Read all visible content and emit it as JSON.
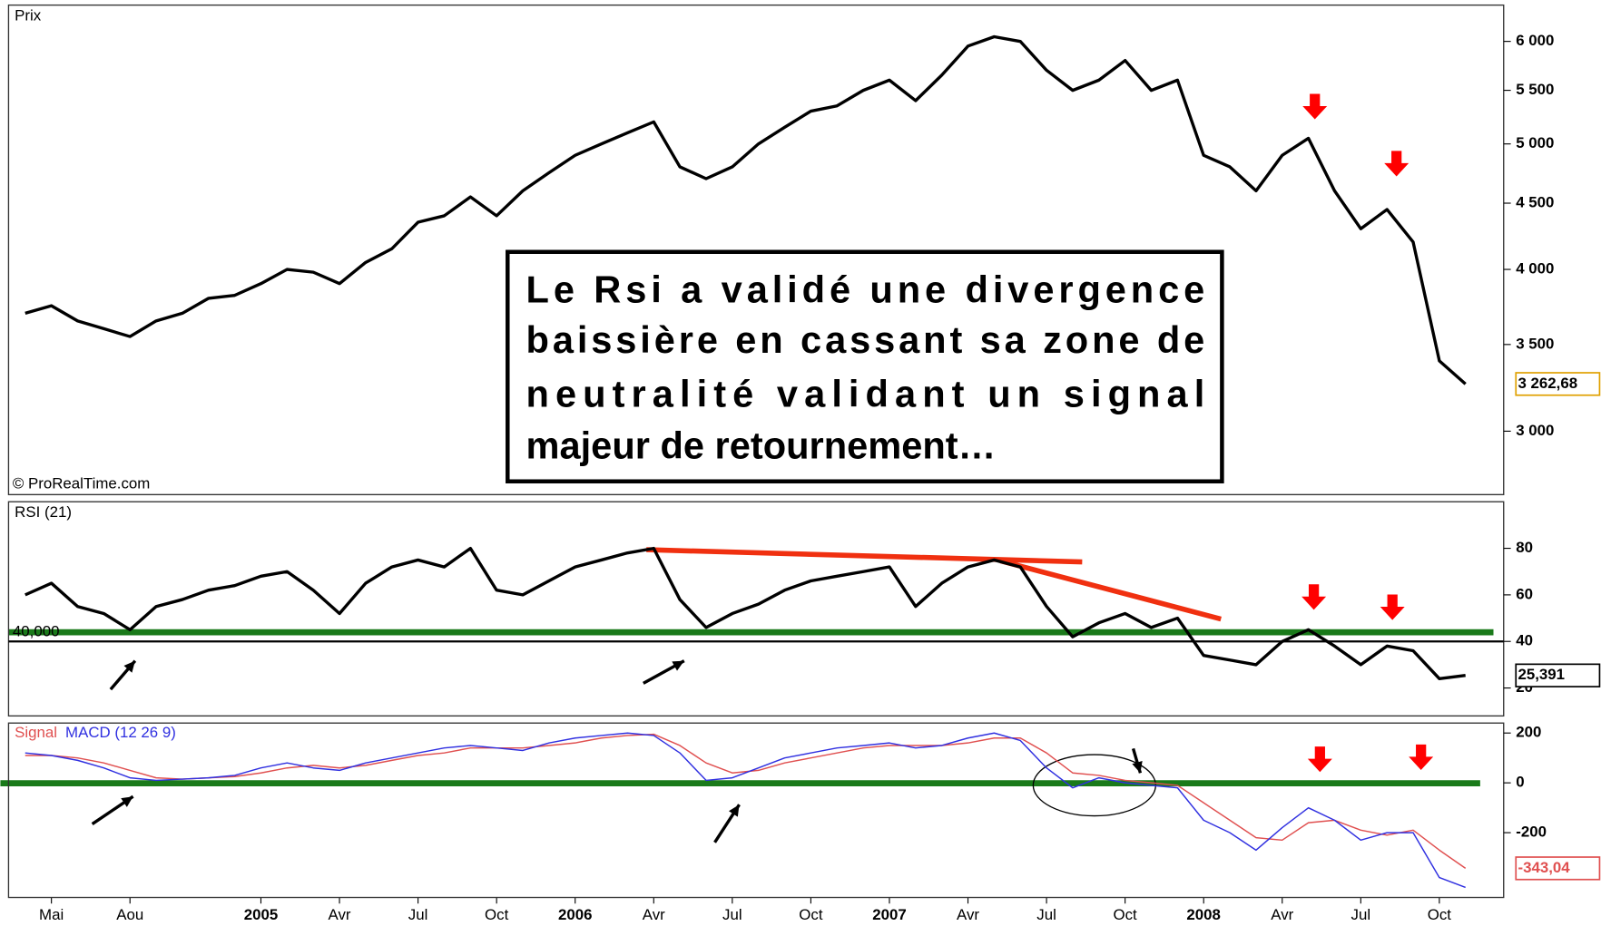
{
  "chart_data": [
    {
      "type": "line",
      "title": "Prix",
      "credit": "© ProRealTime.com",
      "categories": [
        null,
        "Mai",
        null,
        null,
        "Aou",
        null,
        null,
        null,
        null,
        "2005",
        null,
        null,
        "Avr",
        null,
        null,
        "Jul",
        null,
        null,
        "Oct",
        null,
        null,
        "2006",
        null,
        null,
        "Avr",
        null,
        null,
        "Jul",
        null,
        null,
        "Oct",
        null,
        null,
        "2007",
        null,
        null,
        "Avr",
        null,
        null,
        "Jul",
        null,
        null,
        "Oct",
        null,
        null,
        "2008",
        null,
        null,
        "Avr",
        null,
        null,
        "Jul",
        null,
        null,
        "Oct",
        null
      ],
      "values": [
        3700,
        3750,
        3650,
        3600,
        3550,
        3650,
        3700,
        3800,
        3820,
        3900,
        4000,
        3980,
        3900,
        4050,
        4150,
        4350,
        4400,
        4550,
        4400,
        4600,
        4750,
        4900,
        5000,
        5100,
        5200,
        4800,
        4700,
        4800,
        5000,
        5150,
        5300,
        5350,
        5500,
        5600,
        5400,
        5650,
        5950,
        6050,
        6000,
        5700,
        5500,
        5600,
        5800,
        5500,
        5600,
        4900,
        4800,
        4600,
        4900,
        5050,
        4600,
        4300,
        4450,
        4200,
        3400,
        3262.68
      ],
      "color": "#000000",
      "log_scale": true,
      "ylim": [
        2680,
        6400
      ],
      "yticks": [
        {
          "value": 3000,
          "label": "3 000"
        },
        {
          "value": 3500,
          "label": "3 500"
        },
        {
          "value": 4000,
          "label": "4 000"
        },
        {
          "value": 4500,
          "label": "4 500"
        },
        {
          "value": 5000,
          "label": "5 000"
        },
        {
          "value": 5500,
          "label": "5 500"
        },
        {
          "value": 6000,
          "label": "6 000"
        }
      ],
      "last": {
        "value": 3262.68,
        "label": "3 262,68"
      },
      "annotation": [
        "Le Rsi a validé une divergence",
        "baissière en cassant sa zone de",
        "neutralité validant un signal",
        "majeur de retournement…"
      ]
    },
    {
      "type": "line",
      "title": "RSI (21)",
      "values": [
        60,
        65,
        55,
        52,
        45,
        55,
        58,
        62,
        64,
        68,
        70,
        62,
        52,
        65,
        72,
        75,
        72,
        80,
        62,
        60,
        66,
        72,
        75,
        78,
        80,
        58,
        46,
        52,
        56,
        62,
        66,
        68,
        70,
        72,
        55,
        65,
        72,
        75,
        72,
        55,
        42,
        48,
        52,
        46,
        50,
        34,
        32,
        30,
        40,
        45,
        38,
        30,
        38,
        36,
        24,
        25.391
      ],
      "color": "#000000",
      "ylim": [
        8,
        100
      ],
      "yticks": [
        20,
        40,
        60,
        80
      ],
      "reference": {
        "value": 40,
        "label": "40,000"
      },
      "last": {
        "value": 25.391,
        "label": "25,391"
      }
    },
    {
      "type": "line",
      "ylim": [
        -460,
        240
      ],
      "yticks": [
        -200,
        0,
        200
      ],
      "series": [
        {
          "name": "Signal",
          "color": "#e05050",
          "values": [
            110,
            110,
            100,
            80,
            50,
            20,
            15,
            20,
            25,
            40,
            60,
            70,
            60,
            70,
            90,
            110,
            120,
            140,
            140,
            140,
            150,
            160,
            180,
            190,
            195,
            150,
            80,
            40,
            50,
            80,
            100,
            120,
            140,
            150,
            150,
            150,
            160,
            180,
            180,
            120,
            40,
            30,
            10,
            0,
            -10,
            -80,
            -150,
            -220,
            -230,
            -160,
            -150,
            -190,
            -210,
            -190,
            -270,
            -343.04
          ]
        },
        {
          "name": "MACD (12 26 9)",
          "color": "#3030e0",
          "values": [
            120,
            110,
            90,
            60,
            20,
            10,
            15,
            20,
            30,
            60,
            80,
            60,
            50,
            80,
            100,
            120,
            140,
            150,
            140,
            130,
            160,
            180,
            190,
            200,
            190,
            120,
            10,
            20,
            60,
            100,
            120,
            140,
            150,
            160,
            140,
            150,
            180,
            200,
            170,
            60,
            -20,
            20,
            0,
            -10,
            -20,
            -150,
            -200,
            -270,
            -180,
            -100,
            -150,
            -230,
            -200,
            -200,
            -380,
            -420
          ]
        }
      ],
      "last": {
        "value": -343.04,
        "label": "-343,04"
      }
    }
  ]
}
